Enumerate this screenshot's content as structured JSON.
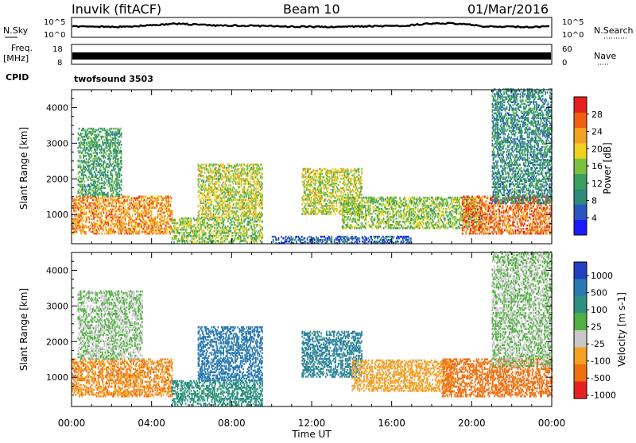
{
  "header": {
    "station": "Inuvik (fitACF)",
    "beam": "Beam 10",
    "date": "01/Mar/2016"
  },
  "strips": {
    "nsky_label": "N.Sky",
    "nsearch_label": "N.Search",
    "nsky_ticks": [
      "10^5",
      "10^0"
    ],
    "nsearch_ticks": [
      "10^5",
      "10^0"
    ],
    "freq_label": "Freq.",
    "freq_unit": "[MHz]",
    "freq_ticks": [
      "18",
      "8"
    ],
    "nave_label": "Nave",
    "nave_ticks": [
      "60",
      "0"
    ],
    "cpid_label": "CPID",
    "cpid_value": "twofsound 3503"
  },
  "panels": {
    "top": {
      "ylabel": "Slant Range [km]",
      "cbar_label": "Power [dB]"
    },
    "bottom": {
      "ylabel": "Slant Range [km]",
      "cbar_label": "Velocity [m s-1]"
    }
  },
  "xlabel": "Time UT",
  "chart_data": [
    {
      "type": "heatmap",
      "title": "Power",
      "xlabel": "Time UT",
      "ylabel": "Slant Range [km]",
      "x_ticks": [
        "00:00",
        "04:00",
        "08:00",
        "12:00",
        "16:00",
        "20:00",
        "00:00"
      ],
      "y_ticks": [
        1000,
        2000,
        3000,
        4000
      ],
      "xlim_hours": [
        0,
        24
      ],
      "ylim_km": [
        180,
        4500
      ],
      "colorbar": {
        "label": "Power [dB]",
        "ticks": [
          4,
          8,
          12,
          16,
          20,
          24,
          28
        ],
        "range": [
          0,
          32
        ],
        "colors": [
          "#1a1aff",
          "#2a55c0",
          "#2e8a7a",
          "#3aa060",
          "#7cc040",
          "#f0d020",
          "#f4a020",
          "#f06010",
          "#e62020"
        ]
      },
      "echo_regions": [
        {
          "t": [
            0.0,
            5.0
          ],
          "r": [
            450,
            1500
          ],
          "level": 24
        },
        {
          "t": [
            0.3,
            2.5
          ],
          "r": [
            1500,
            3400
          ],
          "level": 12
        },
        {
          "t": [
            5.0,
            9.5
          ],
          "r": [
            200,
            900
          ],
          "level": 16
        },
        {
          "t": [
            6.3,
            9.5
          ],
          "r": [
            900,
            2400
          ],
          "level": 18
        },
        {
          "t": [
            11.5,
            14.5
          ],
          "r": [
            1000,
            2300
          ],
          "level": 18
        },
        {
          "t": [
            13.5,
            20.5
          ],
          "r": [
            600,
            1500
          ],
          "level": 16
        },
        {
          "t": [
            19.5,
            24.0
          ],
          "r": [
            450,
            1500
          ],
          "level": 26
        },
        {
          "t": [
            21.0,
            24.0
          ],
          "r": [
            1300,
            4500
          ],
          "level": 10
        },
        {
          "t": [
            10.0,
            17.0
          ],
          "r": [
            180,
            400
          ],
          "level": 6
        }
      ]
    },
    {
      "type": "heatmap",
      "title": "Velocity",
      "xlabel": "Time UT",
      "ylabel": "Slant Range [km]",
      "x_ticks": [
        "00:00",
        "04:00",
        "08:00",
        "12:00",
        "16:00",
        "20:00",
        "00:00"
      ],
      "y_ticks": [
        1000,
        2000,
        3000,
        4000
      ],
      "xlim_hours": [
        0,
        24
      ],
      "ylim_km": [
        180,
        4500
      ],
      "colorbar": {
        "label": "Velocity [m s-1]",
        "ticks": [
          "1000",
          "500",
          "100",
          "25",
          "-25",
          "-100",
          "-500",
          "-1000"
        ],
        "colors": [
          "#2040c0",
          "#2a7ab0",
          "#2e9080",
          "#50b040",
          "#c8c8c8",
          "#f4a020",
          "#f07010",
          "#e62020"
        ]
      },
      "echo_regions": [
        {
          "t": [
            0.0,
            5.0
          ],
          "r": [
            450,
            1500
          ],
          "level": -300
        },
        {
          "t": [
            0.3,
            3.5
          ],
          "r": [
            1500,
            3400
          ],
          "level": 0
        },
        {
          "t": [
            5.0,
            9.5
          ],
          "r": [
            200,
            900
          ],
          "level": 120
        },
        {
          "t": [
            6.3,
            9.5
          ],
          "r": [
            900,
            2400
          ],
          "level": 500
        },
        {
          "t": [
            11.5,
            14.5
          ],
          "r": [
            1000,
            2300
          ],
          "level": 300
        },
        {
          "t": [
            14.0,
            19.0
          ],
          "r": [
            600,
            1500
          ],
          "level": -100
        },
        {
          "t": [
            18.5,
            24.0
          ],
          "r": [
            450,
            1500
          ],
          "level": -500
        },
        {
          "t": [
            21.0,
            24.0
          ],
          "r": [
            1300,
            4500
          ],
          "level": 0
        }
      ]
    }
  ]
}
